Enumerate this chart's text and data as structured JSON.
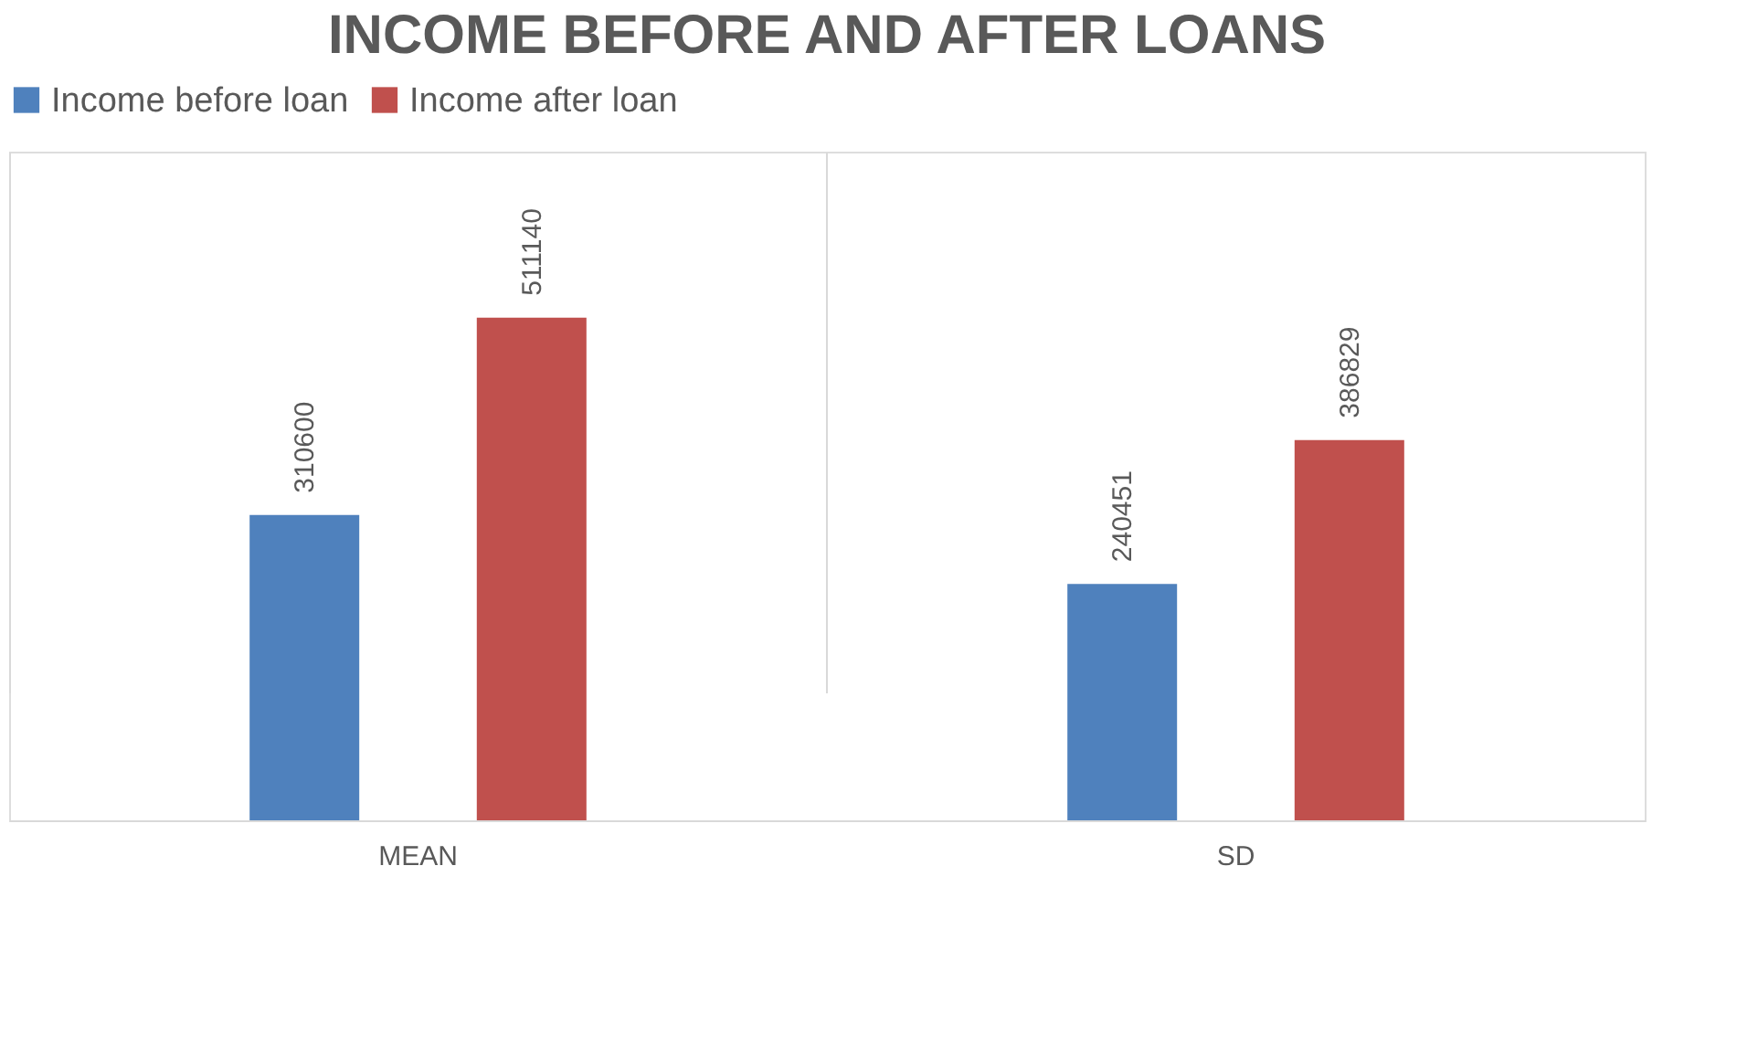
{
  "chart_data": {
    "type": "bar",
    "title": "INCOME BEFORE AND AFTER LOANS",
    "categories": [
      "MEAN",
      "SD"
    ],
    "series": [
      {
        "name": "Income before loan",
        "color": "#4f81bd",
        "values": [
          310600,
          240451
        ]
      },
      {
        "name": "Income after loan",
        "color": "#c0504d",
        "values": [
          511140,
          386829
        ]
      }
    ],
    "data_labels": true,
    "legend": "top",
    "grid": "x",
    "tick_labels": "x"
  }
}
